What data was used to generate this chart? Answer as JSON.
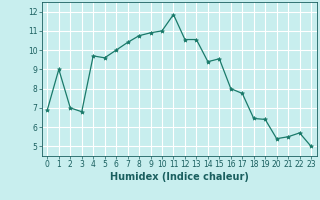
{
  "x": [
    0,
    1,
    2,
    3,
    4,
    5,
    6,
    7,
    8,
    9,
    10,
    11,
    12,
    13,
    14,
    15,
    16,
    17,
    18,
    19,
    20,
    21,
    22,
    23
  ],
  "y": [
    6.9,
    9.0,
    7.0,
    6.8,
    9.7,
    9.6,
    10.0,
    10.4,
    10.75,
    10.9,
    11.0,
    11.85,
    10.55,
    10.55,
    9.4,
    9.55,
    8.0,
    7.75,
    6.45,
    6.4,
    5.4,
    5.5,
    5.7,
    5.0
  ],
  "line_color": "#1a7a6a",
  "marker": "*",
  "marker_size": 3,
  "bg_color": "#c8eeee",
  "grid_color": "#ffffff",
  "xlabel": "Humidex (Indice chaleur)",
  "ylabel": "",
  "xlim": [
    -0.5,
    23.5
  ],
  "ylim": [
    4.5,
    12.5
  ],
  "yticks": [
    5,
    6,
    7,
    8,
    9,
    10,
    11,
    12
  ],
  "xticks": [
    0,
    1,
    2,
    3,
    4,
    5,
    6,
    7,
    8,
    9,
    10,
    11,
    12,
    13,
    14,
    15,
    16,
    17,
    18,
    19,
    20,
    21,
    22,
    23
  ],
  "tick_fontsize": 5.5,
  "xlabel_fontsize": 7,
  "label_color": "#1a5f5f",
  "linewidth": 0.9
}
